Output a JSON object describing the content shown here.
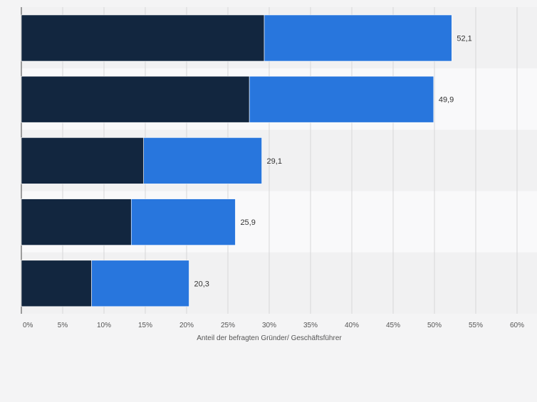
{
  "chart_data": {
    "type": "bar",
    "orientation": "horizontal",
    "stacked": true,
    "categories": [
      "",
      "",
      "",
      "",
      ""
    ],
    "series": [
      {
        "values": [
          29.4,
          27.6,
          14.8,
          13.3,
          8.5
        ]
      },
      {
        "values": [
          22.7,
          22.3,
          14.3,
          12.6,
          11.8
        ]
      }
    ],
    "totals": [
      "52,1",
      "49,9",
      "29,1",
      "25,9",
      "20,3"
    ],
    "total_values": [
      52.1,
      49.9,
      29.1,
      25.9,
      20.3
    ],
    "xlabel": "Anteil der befragten Gründer/ Geschäftsführer",
    "ylabel": "",
    "xlim": [
      0,
      60
    ],
    "xticks": [
      "0%",
      "5%",
      "10%",
      "15%",
      "20%",
      "25%",
      "30%",
      "35%",
      "40%",
      "45%",
      "50%",
      "55%",
      "60%"
    ],
    "grid": true,
    "colors": {
      "series1": "#12263f",
      "series2": "#2876dd",
      "band_light": "#f9f9fa",
      "band_dark": "#f1f1f2",
      "grid": "#d6d6d8",
      "text": "#333333"
    }
  }
}
